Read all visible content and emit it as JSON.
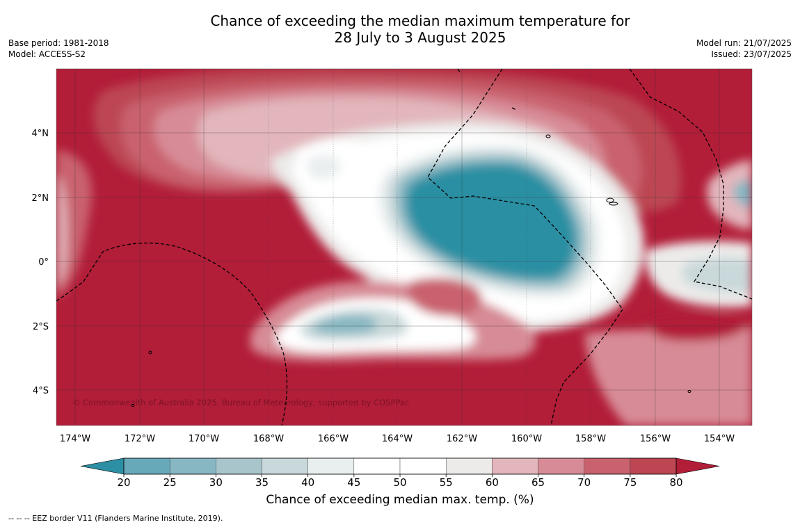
{
  "title_line1": "Chance of exceeding the median maximum temperature for",
  "title_line2": "28 July to 3 August 2025",
  "meta_left": {
    "base_period": "Base period: 1981-2018",
    "model": "Model: ACCESS-S2"
  },
  "meta_right": {
    "model_run": "Model run: 21/07/2025",
    "issued": "Issued: 23/07/2025"
  },
  "copyright": "© Commonwealth of Australia 2025, Bureau of Meteorology, supported by COSPPac",
  "colorbar_label": "Chance of exceeding median max. temp. (%)",
  "footnote": "--  --  -- EEZ border V11 (Flanders Marine Institute, 2019).",
  "lon_labels": [
    "174°W",
    "172°W",
    "170°W",
    "168°W",
    "166°W",
    "164°W",
    "162°W",
    "160°W",
    "158°W",
    "156°W",
    "154°W"
  ],
  "lat_labels": [
    "4°N",
    "2°N",
    "0°",
    "2°S",
    "4°S"
  ],
  "colorbar_ticks": [
    "20",
    "25",
    "30",
    "35",
    "40",
    "45",
    "50",
    "55",
    "60",
    "65",
    "70",
    "75",
    "80"
  ],
  "colors": {
    "bins": [
      "#2c8fa3",
      "#68a9b9",
      "#86b7c3",
      "#a8c5cb",
      "#c9d8da",
      "#e9eeef",
      "#ffffff",
      "#ffffff",
      "#ecebea",
      "#e2b6bc",
      "#d78b96",
      "#c9626e",
      "#bc4652",
      "#b21d38"
    ],
    "eez_line": "#000000",
    "grid": "#333333"
  }
}
